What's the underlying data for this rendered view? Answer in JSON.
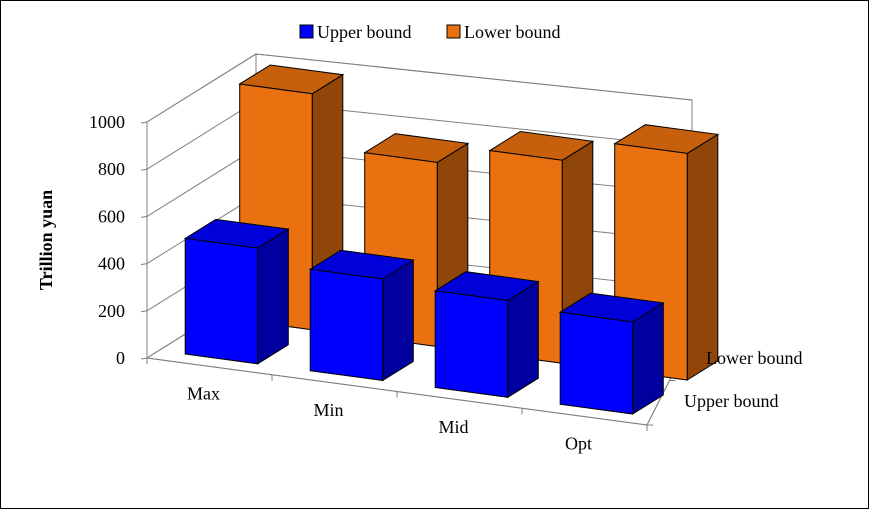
{
  "chart_data": {
    "type": "bar",
    "style": "3d-clustered-column",
    "categories": [
      "Max",
      "Min",
      "Mid",
      "Opt"
    ],
    "depth_labels": [
      "Lower bound",
      "Upper bound"
    ],
    "series": [
      {
        "name": "Upper bound",
        "values": [
          490,
          430,
          410,
          390
        ],
        "color": "#0000ff"
      },
      {
        "name": "Lower bound",
        "values": [
          1000,
          780,
          860,
          960
        ],
        "color": "#e9710f"
      }
    ],
    "ylabel": "Trillion yuan",
    "yticks": [
      "0",
      "200",
      "400",
      "600",
      "800",
      "1000"
    ],
    "ylim": [
      0,
      1000
    ],
    "grid": true,
    "legend_position": "top"
  }
}
